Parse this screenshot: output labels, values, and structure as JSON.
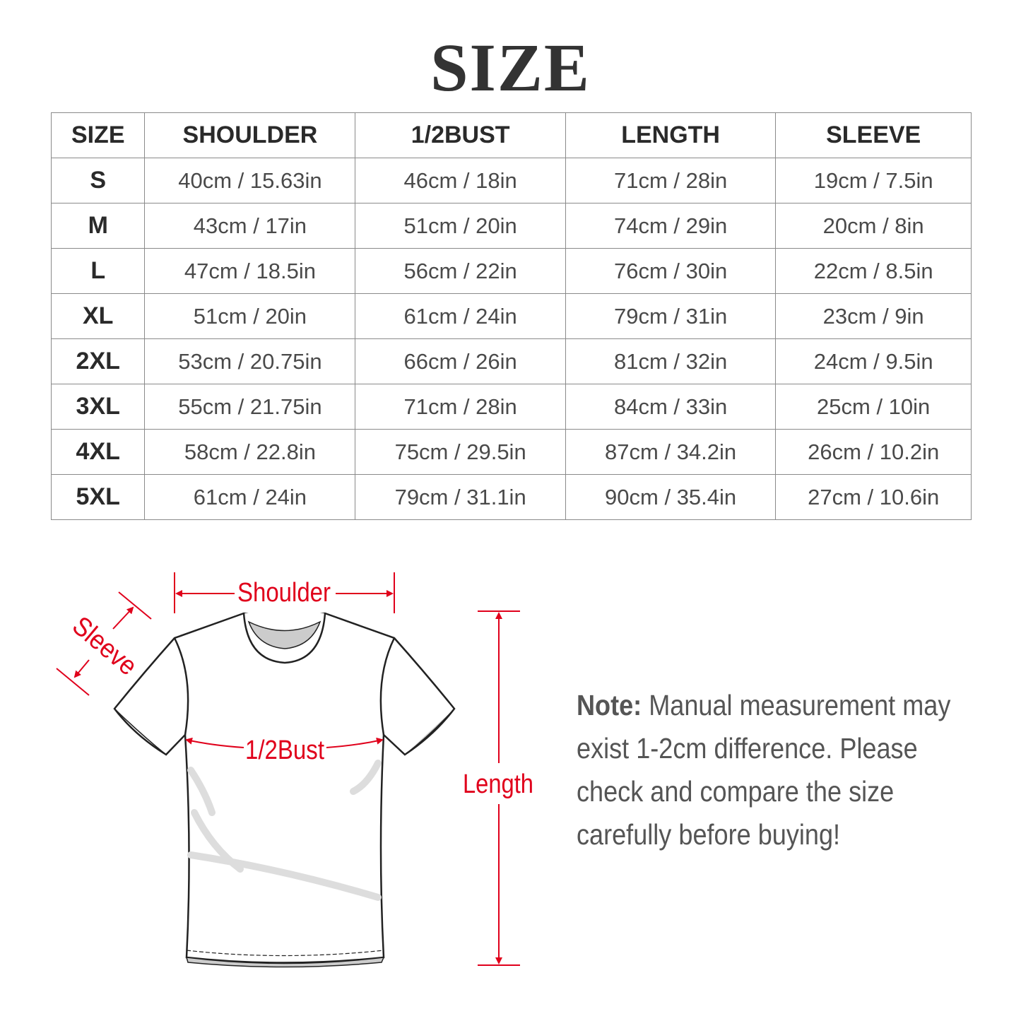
{
  "title": "SIZE",
  "table": {
    "headers": [
      "SIZE",
      "SHOULDER",
      "1/2BUST",
      "LENGTH",
      "SLEEVE"
    ],
    "rows": [
      [
        "S",
        "40cm / 15.63in",
        "46cm / 18in",
        "71cm / 28in",
        "19cm / 7.5in"
      ],
      [
        "M",
        "43cm / 17in",
        "51cm / 20in",
        "74cm / 29in",
        "20cm / 8in"
      ],
      [
        "L",
        "47cm / 18.5in",
        "56cm / 22in",
        "76cm / 30in",
        "22cm / 8.5in"
      ],
      [
        "XL",
        "51cm / 20in",
        "61cm / 24in",
        "79cm / 31in",
        "23cm / 9in"
      ],
      [
        "2XL",
        "53cm / 20.75in",
        "66cm / 26in",
        "81cm / 32in",
        "24cm / 9.5in"
      ],
      [
        "3XL",
        "55cm / 21.75in",
        "71cm / 28in",
        "84cm / 33in",
        "25cm / 10in"
      ],
      [
        "4XL",
        "58cm / 22.8in",
        "75cm / 29.5in",
        "87cm / 34.2in",
        "26cm / 10.2in"
      ],
      [
        "5XL",
        "61cm / 24in",
        "79cm / 31.1in",
        "90cm / 35.4in",
        "27cm / 10.6in"
      ]
    ]
  },
  "diagram": {
    "shoulder_label": "Shoulder",
    "sleeve_label": "Sleeve",
    "bust_label": "1/2Bust",
    "length_label": "Length",
    "accent_color": "#e0001b"
  },
  "note": {
    "label": "Note:",
    "text": "Manual measurement may exist 1-2cm difference. Please check and compare the size carefully before buying!"
  }
}
